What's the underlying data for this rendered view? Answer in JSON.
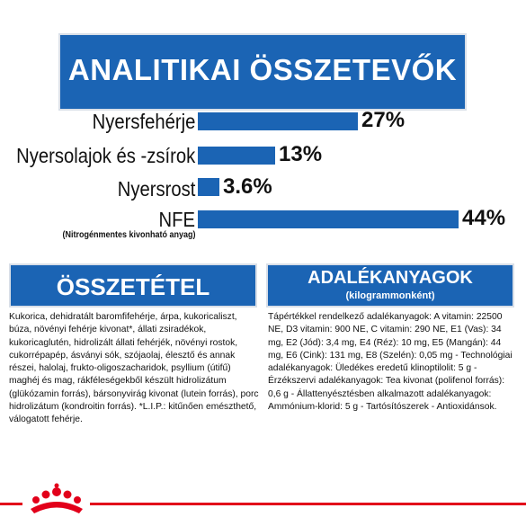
{
  "header": {
    "title": "ANALITIKAI ÖSSZETEVŐK"
  },
  "chart_data": {
    "type": "bar",
    "orientation": "horizontal",
    "categories": [
      "Nyersfehérje",
      "Nyersolajok és -zsírok",
      "Nyersrost",
      "NFE"
    ],
    "category_notes": [
      "",
      "",
      "",
      "(Nitrogénmentes kivonható anyag)"
    ],
    "values": [
      27,
      13,
      3.6,
      44
    ],
    "value_labels": [
      "27%",
      "13%",
      "3.6%",
      "44%"
    ],
    "unit": "%",
    "title": "ANALITIKAI ÖSSZETEVŐK",
    "bar_color": "#1b64b4",
    "xlim": [
      0,
      44
    ]
  },
  "composition": {
    "title": "ÖSSZETÉTEL",
    "text": "Kukorica, dehidratált baromfifehérje, árpa, kukoricaliszt, búza, növényi fehérje kivonat*, állati zsiradékok, kukoricaglutén, hidrolizált állati fehérjék, növényi rostok, cukorrépapép, ásványi sók, szójaolaj, élesztő és annak részei, halolaj, frukto-oligoszacharidok, psyllium (útifű) maghéj és mag, rákféleségekből készült hidrolizátum (glükózamin forrás), bársonyvirág kivonat (lutein forrás), porc hidrolizátum (kondroitin forrás). *L.I.P.: kitűnően emészthető, válogatott fehérje."
  },
  "additives": {
    "title": "ADALÉKANYAGOK",
    "subtitle": "(kilogrammonként)",
    "text": "Tápértékkel rendelkező adalékanyagok: A vitamin: 22500 NE, D3 vitamin: 900 NE, C vitamin: 290 NE, E1 (Vas): 34 mg, E2 (Jód): 3,4 mg, E4 (Réz): 10 mg, E5 (Mangán): 44 mg, E6 (Cink): 131 mg, E8 (Szelén): 0,05 mg - Technológiai adalékanyagok: Üledékes eredetű klinoptilolit: 5 g - Érzékszervi adalékanyagok: Tea kivonat (polifenol forrás): 0,6 g - Állattenyésztésben alkalmazott adalékanyagok: Ammónium-klorid: 5 g - Tartósítószerek - Antioxidánsok."
  },
  "colors": {
    "brand_blue": "#1b64b4",
    "brand_red": "#e2001a"
  },
  "footer": {
    "logo": "royal-canin-crown-logo"
  }
}
